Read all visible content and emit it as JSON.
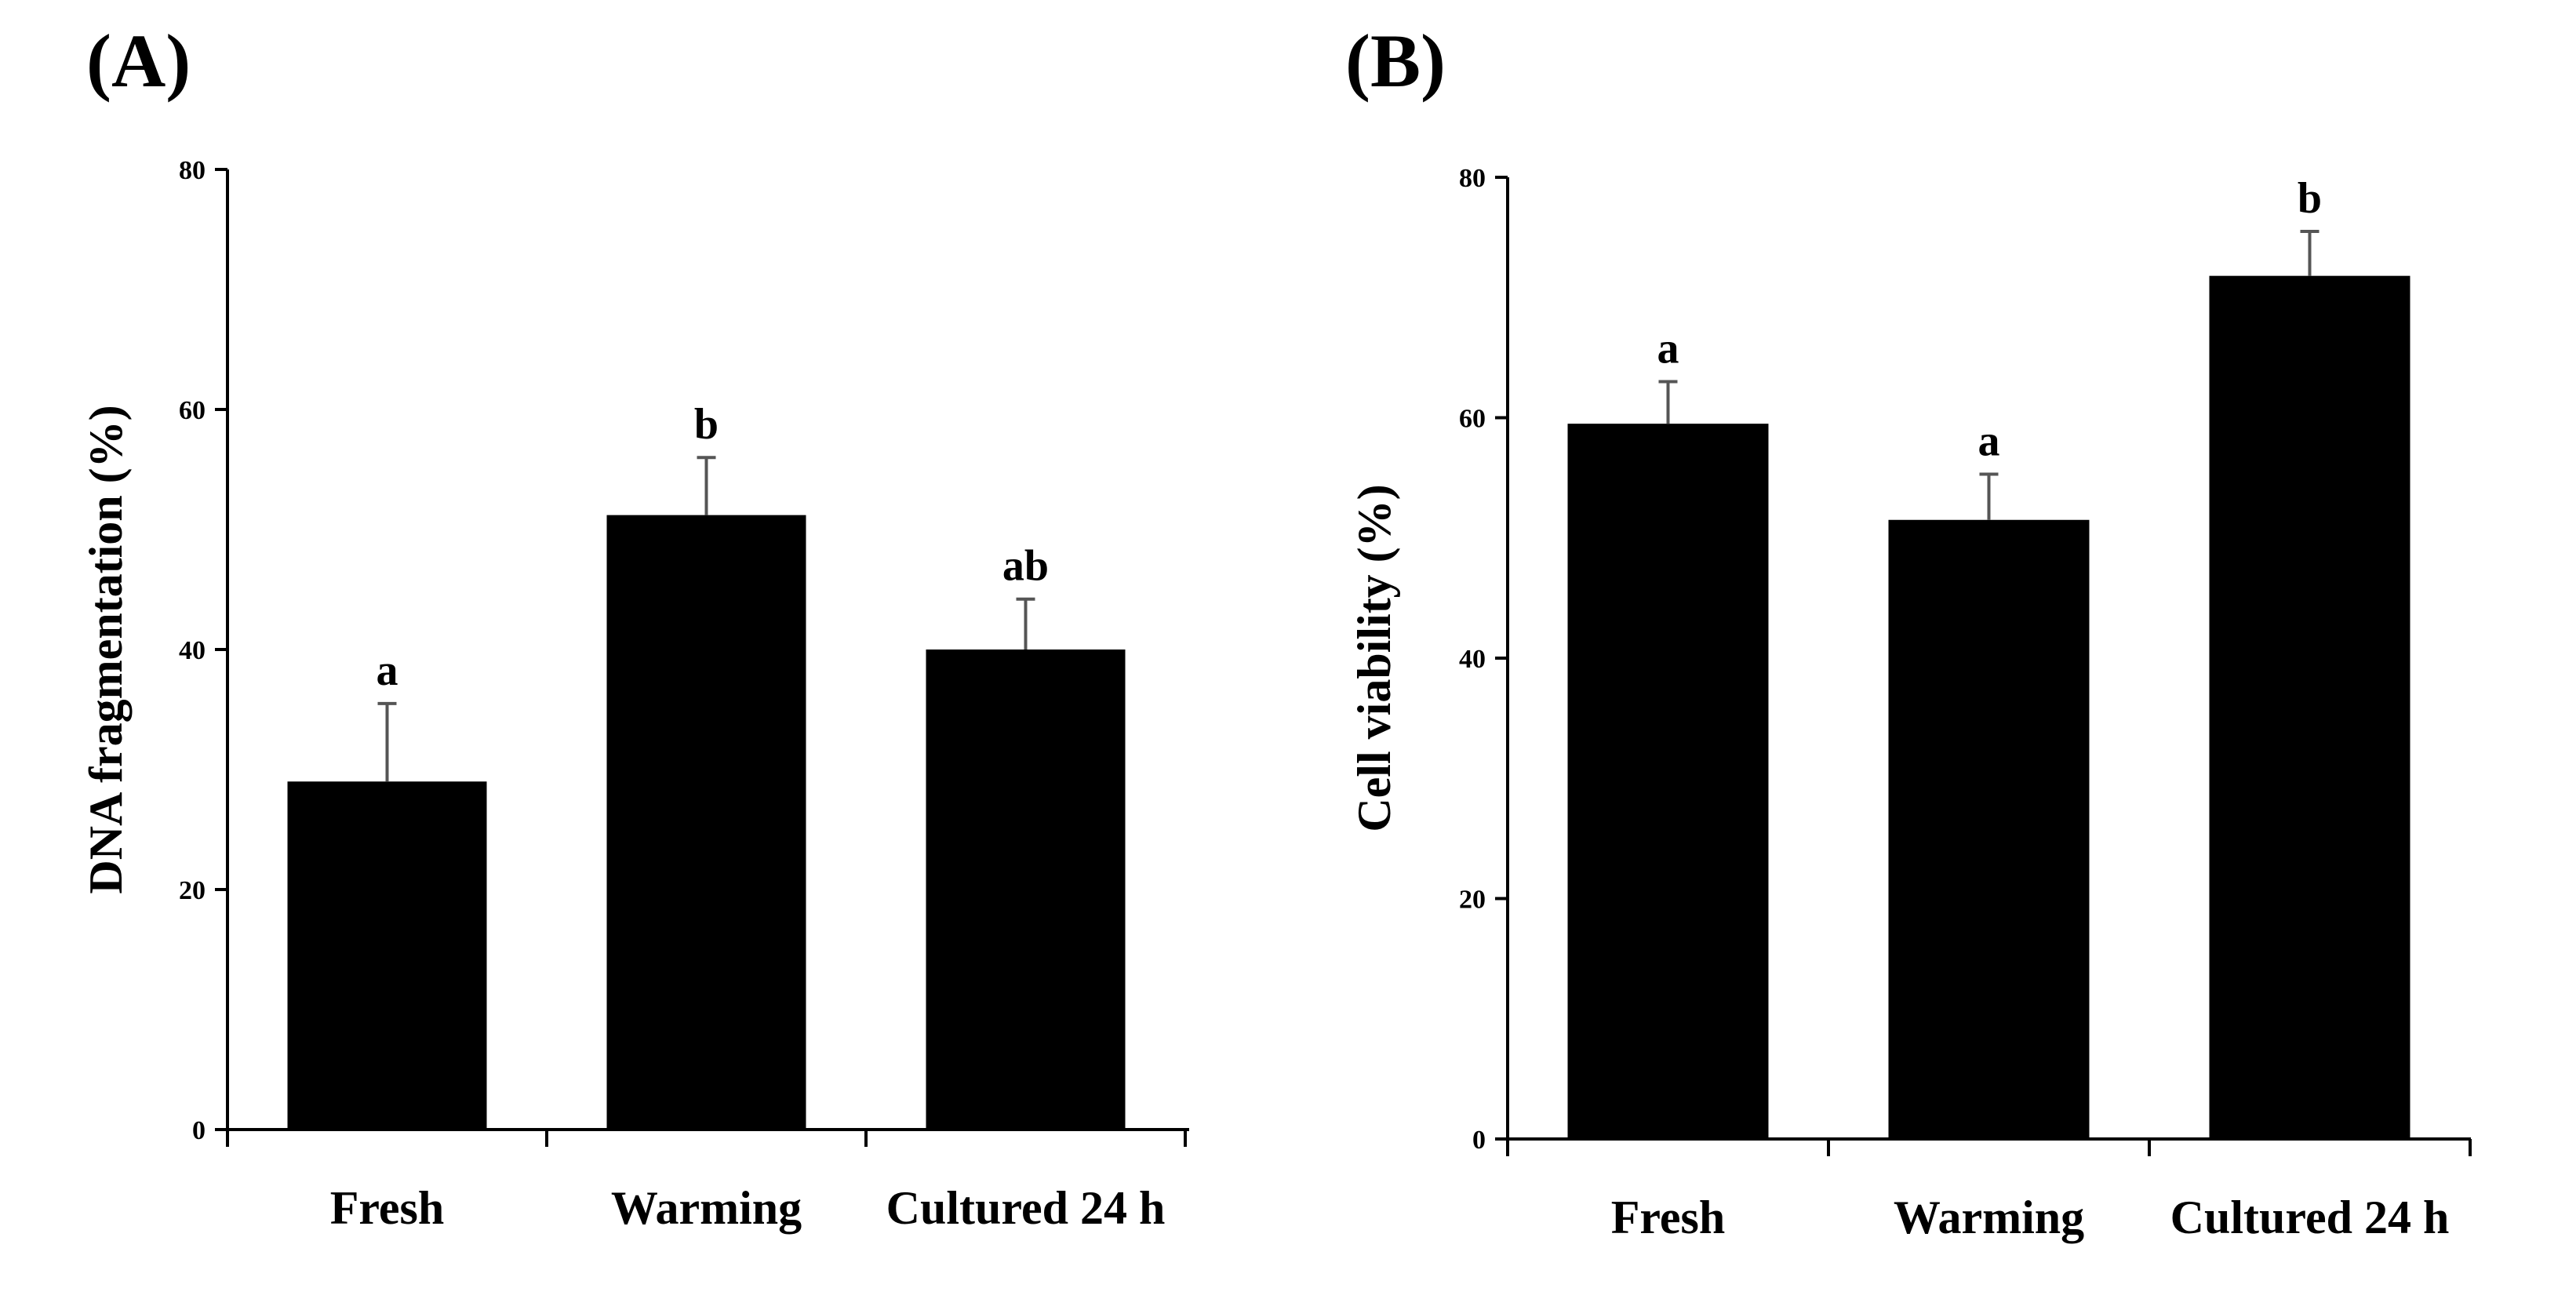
{
  "chart_data": [
    {
      "type": "bar",
      "panel_label": "(A)",
      "title": "",
      "xlabel": "",
      "ylabel": "DNA fragmentation (%)",
      "ylim": [
        0,
        80
      ],
      "yticks": [
        "0",
        "20",
        "40",
        "60",
        "80"
      ],
      "categories": [
        "Fresh",
        "Warming",
        "Cultured 24 h"
      ],
      "values": [
        29,
        51.2,
        40
      ],
      "errors": [
        6.5,
        4.8,
        4.2
      ],
      "significance": [
        "a",
        "b",
        "ab"
      ],
      "bar_color": "#000000"
    },
    {
      "type": "bar",
      "panel_label": "(B)",
      "title": "",
      "xlabel": "",
      "ylabel": "Cell viability (%)",
      "ylim": [
        0,
        80
      ],
      "yticks": [
        "0",
        "20",
        "40",
        "60",
        "80"
      ],
      "categories": [
        "Fresh",
        "Warming",
        "Cultured 24 h"
      ],
      "values": [
        59.5,
        51.5,
        71.8
      ],
      "errors": [
        3.5,
        3.8,
        3.7
      ],
      "significance": [
        "a",
        "a",
        "b"
      ],
      "bar_color": "#000000"
    }
  ]
}
